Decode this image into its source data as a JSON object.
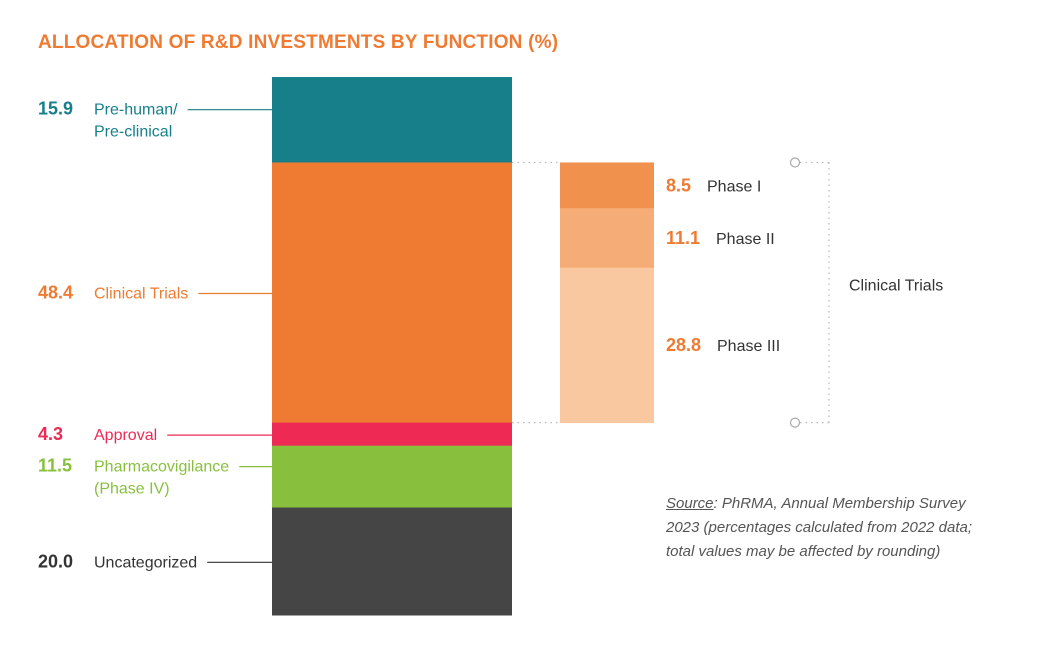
{
  "chart_data": {
    "type": "bar",
    "title": "ALLOCATION OF R&D INVESTMENTS BY FUNCTION (%)",
    "stacked": true,
    "segments": [
      {
        "value": 15.9,
        "label_lines": [
          "Pre-human/",
          "Pre-clinical"
        ],
        "value_text": "15.9",
        "color": "#177f8a"
      },
      {
        "value": 48.4,
        "label_lines": [
          "Clinical Trials"
        ],
        "value_text": "48.4",
        "color": "#ef7b32"
      },
      {
        "value": 4.3,
        "label_lines": [
          "Approval"
        ],
        "value_text": "4.3",
        "color": "#ee2a54"
      },
      {
        "value": 11.5,
        "label_lines": [
          "Pharmacovigilance",
          "(Phase IV)"
        ],
        "value_text": "11.5",
        "color": "#88c03e"
      },
      {
        "value": 20.0,
        "label_lines": [
          "Uncategorized"
        ],
        "value_text": "20.0",
        "color": "#454545"
      }
    ],
    "breakdown": {
      "parent": "Clinical Trials",
      "segments": [
        {
          "value": 8.5,
          "label": "Phase I",
          "value_text": "8.5",
          "color": "#f1914e"
        },
        {
          "value": 11.1,
          "label": "Phase II",
          "value_text": "11.1",
          "color": "#f5ac77"
        },
        {
          "value": 28.8,
          "label": "Phase III",
          "value_text": "28.8",
          "color": "#f9c8a1"
        }
      ],
      "value_color": "#ef7b32"
    }
  },
  "title_color": "#ef7b32",
  "label_text_color": "#333333",
  "source": {
    "heading": "Source",
    "text": ": PhRMA, Annual Membership Survey 2023 (percentages calculated from 2022 data; total values may be affected by rounding)"
  }
}
